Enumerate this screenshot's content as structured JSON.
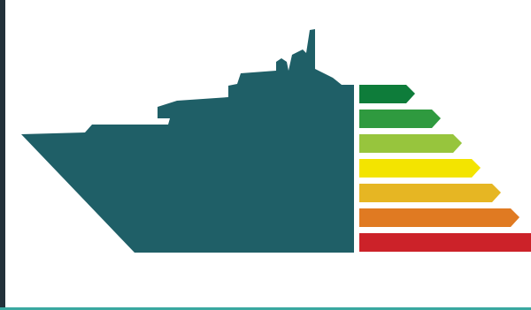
{
  "illustration": {
    "subject": "ship-energy-efficiency-rating",
    "colors": {
      "background": "#ffffff",
      "ship": "#1f5f67",
      "frame_left": "#22313a",
      "frame_bottom": "#3aa8a0"
    },
    "rating_bars": [
      {
        "level": 1,
        "color": "#0e7c3a"
      },
      {
        "level": 2,
        "color": "#2f9a3f"
      },
      {
        "level": 3,
        "color": "#97c53d"
      },
      {
        "level": 4,
        "color": "#f3e400"
      },
      {
        "level": 5,
        "color": "#e6b623"
      },
      {
        "level": 6,
        "color": "#e07a22"
      },
      {
        "level": 7,
        "color": "#cc2229"
      }
    ]
  }
}
